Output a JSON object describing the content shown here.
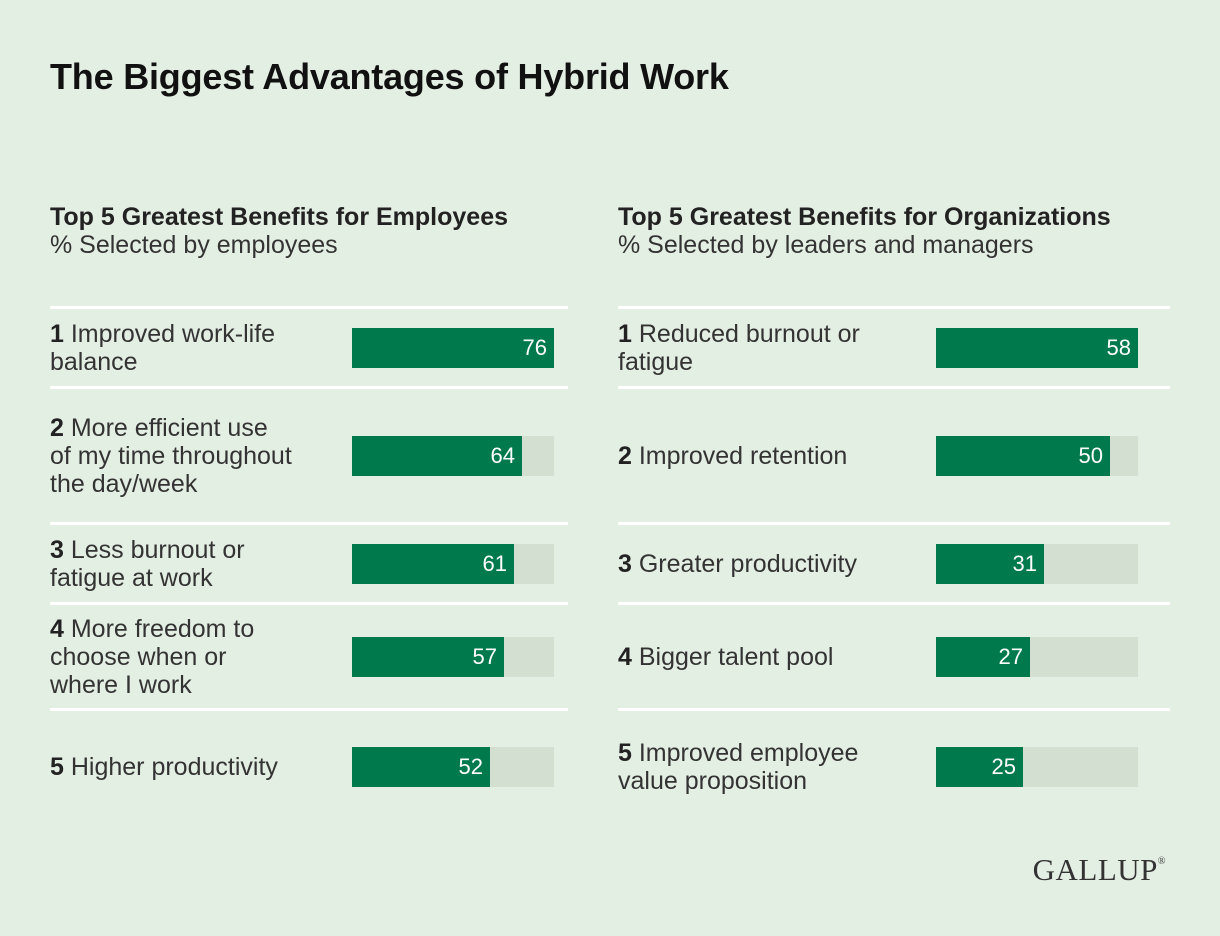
{
  "title": "The Biggest Advantages of Hybrid Work",
  "brand": "GALLUP",
  "brand_mark": "®",
  "colors": {
    "background": "#e4efe3",
    "bar": "#00794d",
    "track": "#d3e0d1",
    "divider": "#ffffff"
  },
  "chart_data": [
    {
      "type": "bar",
      "orientation": "horizontal",
      "title": "Top 5 Greatest Benefits for Employees",
      "subtitle": "% Selected by employees",
      "xlim": [
        0,
        76
      ],
      "ranks": [
        "1",
        "2",
        "3",
        "4",
        "5"
      ],
      "categories": [
        "Improved work-life balance",
        "More efficient use of my time throughout the day/week",
        "Less burnout or fatigue at work",
        "More freedom to choose when or where I work",
        "Higher productivity"
      ],
      "values": [
        76,
        64,
        61,
        57,
        52
      ]
    },
    {
      "type": "bar",
      "orientation": "horizontal",
      "title": "Top 5 Greatest Benefits for Organizations",
      "subtitle": "% Selected by leaders and managers",
      "xlim": [
        0,
        58
      ],
      "ranks": [
        "1",
        "2",
        "3",
        "4",
        "5"
      ],
      "categories": [
        "Reduced burnout or fatigue",
        "Improved retention",
        "Greater productivity",
        "Bigger talent pool",
        "Improved employee value proposition"
      ],
      "values": [
        58,
        50,
        31,
        27,
        25
      ]
    }
  ]
}
